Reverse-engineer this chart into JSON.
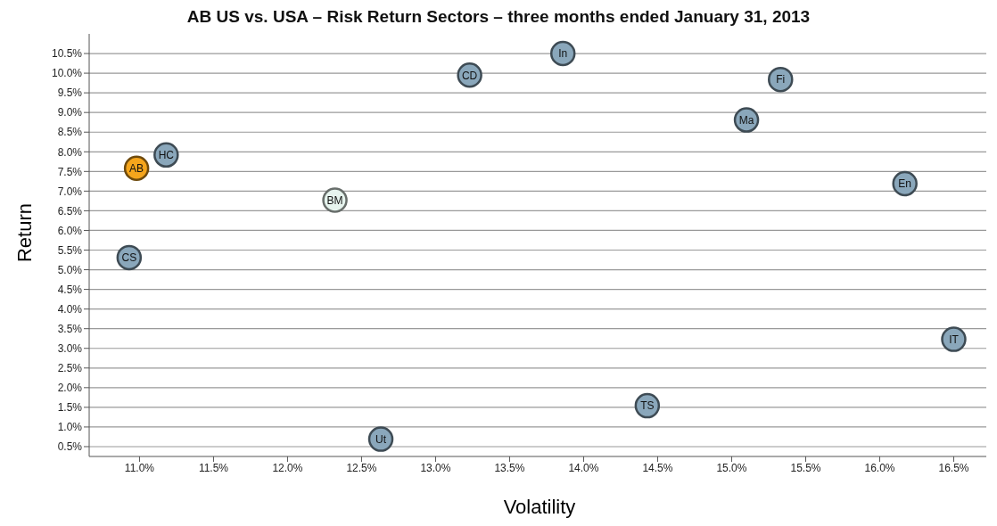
{
  "chart_data": {
    "type": "scatter",
    "title": "AB US vs. USA – Risk Return Sectors – three months ended January 31, 2013",
    "xlabel": "Volatility",
    "ylabel": "Return",
    "xlim": [
      10.66,
      16.72
    ],
    "ylim": [
      0.25,
      11.0
    ],
    "xticks": [
      {
        "value": 11.0,
        "label": "11.0%"
      },
      {
        "value": 11.5,
        "label": "11.5%"
      },
      {
        "value": 12.0,
        "label": "12.0%"
      },
      {
        "value": 12.5,
        "label": "12.5%"
      },
      {
        "value": 13.0,
        "label": "13.0%"
      },
      {
        "value": 13.5,
        "label": "13.5%"
      },
      {
        "value": 14.0,
        "label": "14.0%"
      },
      {
        "value": 14.5,
        "label": "14.5%"
      },
      {
        "value": 15.0,
        "label": "15.0%"
      },
      {
        "value": 15.5,
        "label": "15.5%"
      },
      {
        "value": 16.0,
        "label": "16.0%"
      },
      {
        "value": 16.5,
        "label": "16.5%"
      }
    ],
    "yticks": [
      {
        "value": 0.5,
        "label": "0.5%"
      },
      {
        "value": 1.0,
        "label": "1.0%"
      },
      {
        "value": 1.5,
        "label": "1.5%"
      },
      {
        "value": 2.0,
        "label": "2.0%"
      },
      {
        "value": 2.5,
        "label": "2.5%"
      },
      {
        "value": 3.0,
        "label": "3.0%"
      },
      {
        "value": 3.5,
        "label": "3.5%"
      },
      {
        "value": 4.0,
        "label": "4.0%"
      },
      {
        "value": 4.5,
        "label": "4.5%"
      },
      {
        "value": 5.0,
        "label": "5.0%"
      },
      {
        "value": 5.5,
        "label": "5.5%"
      },
      {
        "value": 6.0,
        "label": "6.0%"
      },
      {
        "value": 6.5,
        "label": "6.5%"
      },
      {
        "value": 7.0,
        "label": "7.0%"
      },
      {
        "value": 7.5,
        "label": "7.5%"
      },
      {
        "value": 8.0,
        "label": "8.0%"
      },
      {
        "value": 8.5,
        "label": "8.5%"
      },
      {
        "value": 9.0,
        "label": "9.0%"
      },
      {
        "value": 9.5,
        "label": "9.5%"
      },
      {
        "value": 10.0,
        "label": "10.0%"
      },
      {
        "value": 10.5,
        "label": "10.5%"
      }
    ],
    "grid": "y",
    "marker": "circle",
    "series": [
      {
        "color": "#8aa7bb",
        "x": [
          11.18,
          10.93,
          13.23,
          12.63,
          13.86,
          15.33,
          15.1,
          16.17,
          16.5,
          14.43
        ],
        "values": [
          7.92,
          5.31,
          9.95,
          0.69,
          10.5,
          9.84,
          8.81,
          7.19,
          3.23,
          1.54
        ]
      },
      {
        "color": "#f5a51c",
        "x": [
          10.98
        ],
        "values": [
          7.58
        ]
      },
      {
        "color": "#e6f4ee",
        "x": [
          12.32
        ],
        "values": [
          6.77
        ]
      }
    ],
    "annotations": [
      {
        "text": "HC",
        "x": 11.18,
        "y": 7.92
      },
      {
        "text": "CS",
        "x": 10.93,
        "y": 5.31
      },
      {
        "text": "CD",
        "x": 13.23,
        "y": 9.95
      },
      {
        "text": "Ut",
        "x": 12.63,
        "y": 0.69
      },
      {
        "text": "In",
        "x": 13.86,
        "y": 10.5
      },
      {
        "text": "Fi",
        "x": 15.33,
        "y": 9.84
      },
      {
        "text": "Ma",
        "x": 15.1,
        "y": 8.81
      },
      {
        "text": "En",
        "x": 16.17,
        "y": 7.19
      },
      {
        "text": "IT",
        "x": 16.5,
        "y": 3.23
      },
      {
        "text": "TS",
        "x": 14.43,
        "y": 1.54
      },
      {
        "text": "AB",
        "x": 10.98,
        "y": 7.58
      },
      {
        "text": "BM",
        "x": 12.32,
        "y": 6.77
      }
    ]
  }
}
